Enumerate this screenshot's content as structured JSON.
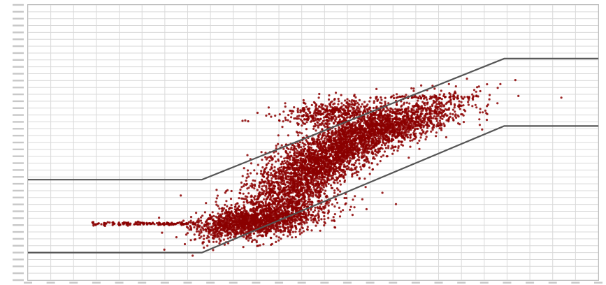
{
  "chart_data": {
    "type": "scatter",
    "title": "",
    "xlabel": "",
    "ylabel": "",
    "xlim": [
      0,
      100
    ],
    "ylim": [
      0,
      100
    ],
    "grid": true,
    "legend": "none",
    "colors": {
      "points": "#8b0000",
      "limit_lines": "#555555",
      "grid": "#d9d9d9",
      "background": "#ffffff"
    },
    "limit_lines": [
      {
        "name": "upper",
        "points": [
          [
            0,
            36.5
          ],
          [
            30.5,
            36.5
          ],
          [
            83.5,
            80.5
          ],
          [
            100,
            80.5
          ]
        ]
      },
      {
        "name": "lower",
        "points": [
          [
            0,
            10
          ],
          [
            30.5,
            10
          ],
          [
            83.5,
            56
          ],
          [
            100,
            56
          ]
        ]
      }
    ],
    "series": [
      {
        "clusters": [
          {
            "cx": 42,
            "cy": 22,
            "sx": 5.5,
            "sy": 4,
            "rho": 0.55,
            "n": 1400
          },
          {
            "cx": 52,
            "cy": 44,
            "sx": 7,
            "sy": 8,
            "rho": 0.8,
            "n": 2200
          },
          {
            "cx": 63,
            "cy": 56,
            "sx": 7,
            "sy": 5,
            "rho": 0.7,
            "n": 1500
          },
          {
            "cx": 54,
            "cy": 61,
            "sx": 5,
            "sy": 2.5,
            "rho": 0.3,
            "n": 500
          },
          {
            "cx": 35,
            "cy": 21,
            "sx": 3,
            "sy": 2.5,
            "rho": 0.4,
            "n": 350
          },
          {
            "cx": 48,
            "cy": 34,
            "sx": 4,
            "sy": 6,
            "rho": 0.6,
            "n": 600
          }
        ],
        "bands": [
          {
            "y": 20.5,
            "x": [
              11,
              30
            ],
            "n": 140
          },
          {
            "y": 66.5,
            "x": [
              60,
              79
            ],
            "n": 60
          }
        ]
      }
    ]
  }
}
